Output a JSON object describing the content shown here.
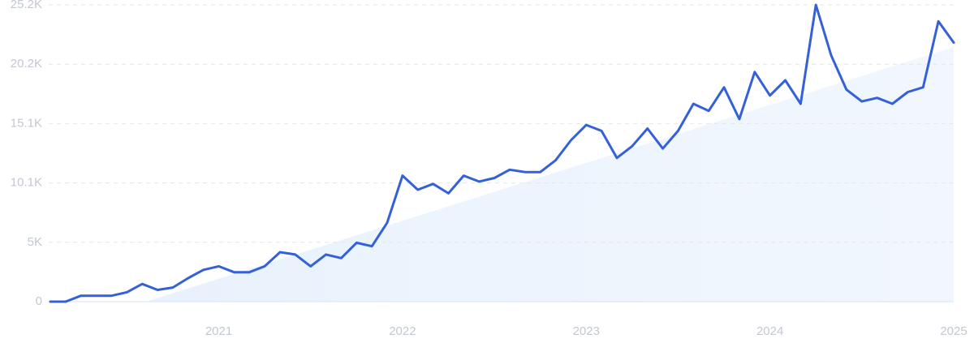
{
  "chart_data": {
    "type": "line",
    "categories": [
      null,
      null,
      null,
      null,
      null,
      null,
      null,
      null,
      null,
      null,
      null,
      "2021",
      null,
      null,
      null,
      null,
      null,
      null,
      null,
      null,
      null,
      null,
      null,
      "2022",
      null,
      null,
      null,
      null,
      null,
      null,
      null,
      null,
      null,
      null,
      null,
      "2023",
      null,
      null,
      null,
      null,
      null,
      null,
      null,
      null,
      null,
      null,
      null,
      "2024",
      null,
      null,
      null,
      null,
      null,
      null,
      null,
      null,
      null,
      null,
      null,
      "2025"
    ],
    "series": [
      {
        "color": "#3461d9",
        "values": [
          0,
          0,
          500,
          500,
          500,
          800,
          1500,
          1000,
          1200,
          2000,
          2700,
          3000,
          2500,
          2500,
          3000,
          4200,
          4000,
          3000,
          4000,
          3700,
          5000,
          4700,
          6700,
          10700,
          9500,
          10000,
          9200,
          10700,
          10200,
          10500,
          11200,
          11000,
          11000,
          12000,
          13700,
          15000,
          14500,
          12200,
          13200,
          14700,
          13000,
          14500,
          16800,
          16200,
          18200,
          15500,
          19500,
          17500,
          18800,
          16800,
          25200,
          20900,
          18000,
          17000,
          17300,
          16800,
          17800,
          18200,
          23800,
          22000
        ]
      }
    ],
    "ylim": [
      0,
      25200
    ],
    "yticks": [
      0,
      {
        "value": 5040,
        "label": "5K"
      },
      {
        "value": 10080,
        "label": "10.1K"
      },
      {
        "value": 15120,
        "label": "15.1K"
      },
      {
        "value": 20160,
        "label": "20.2K"
      },
      {
        "value": 25200,
        "label": "25.2K"
      }
    ],
    "grid": true
  }
}
